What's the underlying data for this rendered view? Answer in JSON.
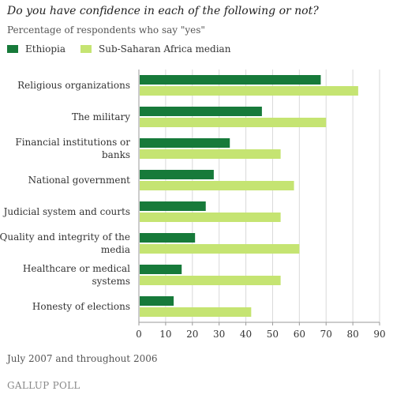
{
  "title": "Do you have confidence in each of the following or not?",
  "subtitle": "Percentage of respondents who say \"yes\"",
  "footnote": "July 2007 and throughout 2006",
  "brand": "GALLUP POLL",
  "colors": {
    "ethiopia": "#177a3a",
    "africa_median": "#c5e472",
    "grid": "#d9d9d9",
    "axis": "#999999"
  },
  "chart_data": {
    "type": "bar",
    "orientation": "horizontal",
    "title": "Do you have confidence in each of the following or not?",
    "subtitle": "Percentage of respondents who say \"yes\"",
    "categories": [
      [
        "Religious organizations"
      ],
      [
        "The military"
      ],
      [
        "Financial institutions or",
        "banks"
      ],
      [
        "National government"
      ],
      [
        "Judicial system and courts"
      ],
      [
        "Quality and integrity of the",
        "media"
      ],
      [
        "Healthcare or medical",
        "systems"
      ],
      [
        "Honesty of elections"
      ]
    ],
    "series": [
      {
        "name": "Ethiopia",
        "color": "#177a3a",
        "values": [
          68,
          46,
          34,
          28,
          25,
          21,
          16,
          13
        ]
      },
      {
        "name": "Sub-Saharan Africa median",
        "color": "#c5e472",
        "values": [
          82,
          70,
          53,
          58,
          53,
          60,
          53,
          42
        ]
      }
    ],
    "xlim": [
      0,
      90
    ],
    "xticks": [
      0,
      10,
      20,
      30,
      40,
      50,
      60,
      70,
      80,
      90
    ],
    "grid": true,
    "legend": "top-left"
  }
}
